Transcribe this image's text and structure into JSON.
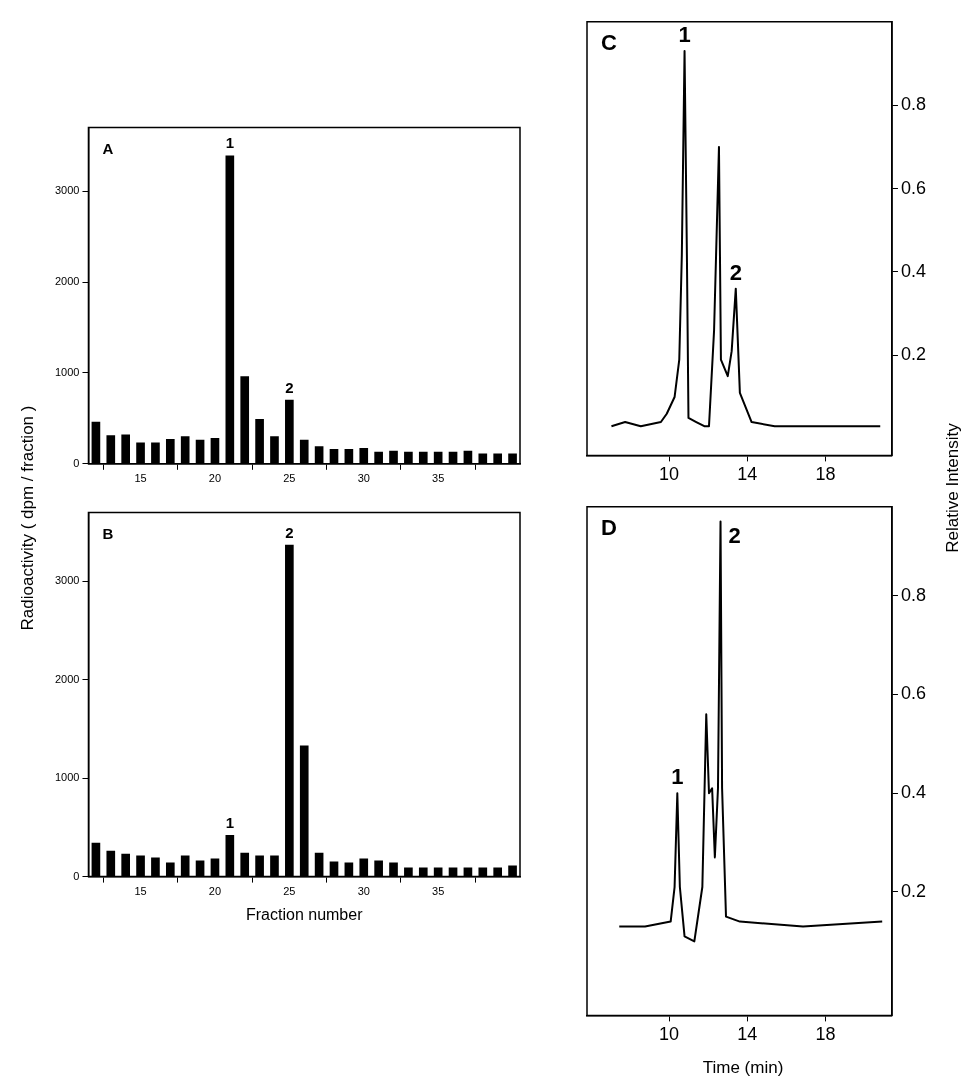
{
  "chart_data": [
    {
      "type": "bar",
      "ylabel": "Radioactivity ( dpm / fraction )",
      "x": [
        12,
        13,
        14,
        15,
        16,
        17,
        18,
        19,
        20,
        21,
        22,
        23,
        24,
        25,
        26,
        27,
        28,
        29,
        30,
        31,
        32,
        33,
        34,
        35,
        36,
        37,
        38,
        39,
        40
      ],
      "xlim": [
        11.5,
        40.5
      ],
      "xticks": [
        15,
        20,
        25,
        30,
        35
      ],
      "ylim": [
        0,
        3700
      ],
      "yticks": [
        0,
        1000,
        2000,
        3000
      ],
      "annotations": [
        "A",
        {
          "text": "1",
          "x": 21,
          "y": 3390
        },
        {
          "text": "2",
          "x": 25,
          "y": 700
        }
      ],
      "series": [
        {
          "color": "#000000",
          "values": [
            460,
            310,
            320,
            230,
            230,
            270,
            300,
            260,
            280,
            3390,
            960,
            490,
            300,
            700,
            260,
            190,
            160,
            160,
            170,
            130,
            140,
            130,
            130,
            130,
            130,
            140,
            110,
            110,
            110
          ]
        }
      ]
    },
    {
      "type": "bar",
      "xlabel": "Fraction number",
      "x": [
        12,
        13,
        14,
        15,
        16,
        17,
        18,
        19,
        20,
        21,
        22,
        23,
        24,
        25,
        26,
        27,
        28,
        29,
        30,
        31,
        32,
        33,
        34,
        35,
        36,
        37,
        38,
        39,
        40
      ],
      "xlim": [
        11.5,
        40.5
      ],
      "xticks": [
        15,
        20,
        25,
        30,
        35
      ],
      "ylim": [
        0,
        3700
      ],
      "yticks": [
        0,
        1000,
        2000,
        3000
      ],
      "annotations": [
        "B",
        {
          "text": "1",
          "x": 21,
          "y": 420
        },
        {
          "text": "2",
          "x": 25,
          "y": 3370
        }
      ],
      "series": [
        {
          "color": "#000000",
          "values": [
            340,
            260,
            230,
            210,
            190,
            140,
            210,
            160,
            180,
            420,
            240,
            210,
            210,
            3370,
            1330,
            240,
            150,
            140,
            180,
            160,
            140,
            90,
            90,
            90,
            90,
            90,
            90,
            90,
            110
          ]
        }
      ]
    },
    {
      "type": "line",
      "ylabel": "Relative Intensity",
      "marker": "none",
      "xlim": [
        5.8,
        21.4
      ],
      "xticks": [
        10,
        14,
        18
      ],
      "ylim": [
        -0.04,
        1.0
      ],
      "yticks": [
        0.2,
        0.4,
        0.6,
        0.8
      ],
      "annotations": [
        "C",
        {
          "text": "1",
          "x": 10.79,
          "y": 0.93
        },
        {
          "text": "2",
          "x": 13.41,
          "y": 0.36
        }
      ],
      "series": [
        {
          "type": "line",
          "color": "#000000",
          "x": [
            7.05,
            7.75,
            8.55,
            9.58,
            9.88,
            10.28,
            10.52,
            10.65,
            10.79,
            10.91,
            10.99,
            11.39,
            11.8,
            12.04,
            12.3,
            12.55,
            12.65,
            13.0,
            13.2,
            13.41,
            13.62,
            14.22,
            15.4,
            20.8
          ],
          "values": [
            0.03,
            0.04,
            0.03,
            0.04,
            0.06,
            0.1,
            0.19,
            0.44,
            0.93,
            0.44,
            0.05,
            0.04,
            0.03,
            0.03,
            0.26,
            0.7,
            0.19,
            0.15,
            0.21,
            0.36,
            0.11,
            0.04,
            0.03,
            0.03
          ]
        }
      ]
    },
    {
      "type": "line",
      "xlabel": "Time (min)",
      "marker": "none",
      "xlim": [
        5.8,
        21.4
      ],
      "xticks": [
        10,
        14,
        18
      ],
      "ylim": [
        -0.05,
        0.98
      ],
      "yticks": [
        0.2,
        0.4,
        0.6,
        0.8
      ],
      "annotations": [
        "D",
        {
          "text": "1",
          "x": 10.42,
          "y": 0.4
        },
        {
          "text": "2",
          "x": 12.63,
          "y": 0.95
        }
      ],
      "series": [
        {
          "type": "line",
          "color": "#000000",
          "x": [
            7.45,
            8.77,
            10.08,
            10.28,
            10.42,
            10.55,
            10.79,
            11.29,
            11.7,
            11.9,
            12.04,
            12.2,
            12.34,
            12.5,
            12.63,
            12.71,
            12.91,
            13.62,
            16.85,
            20.9
          ],
          "values": [
            0.13,
            0.13,
            0.14,
            0.21,
            0.4,
            0.21,
            0.11,
            0.1,
            0.21,
            0.56,
            0.4,
            0.41,
            0.27,
            0.41,
            0.95,
            0.41,
            0.15,
            0.14,
            0.13,
            0.14
          ]
        }
      ]
    }
  ]
}
